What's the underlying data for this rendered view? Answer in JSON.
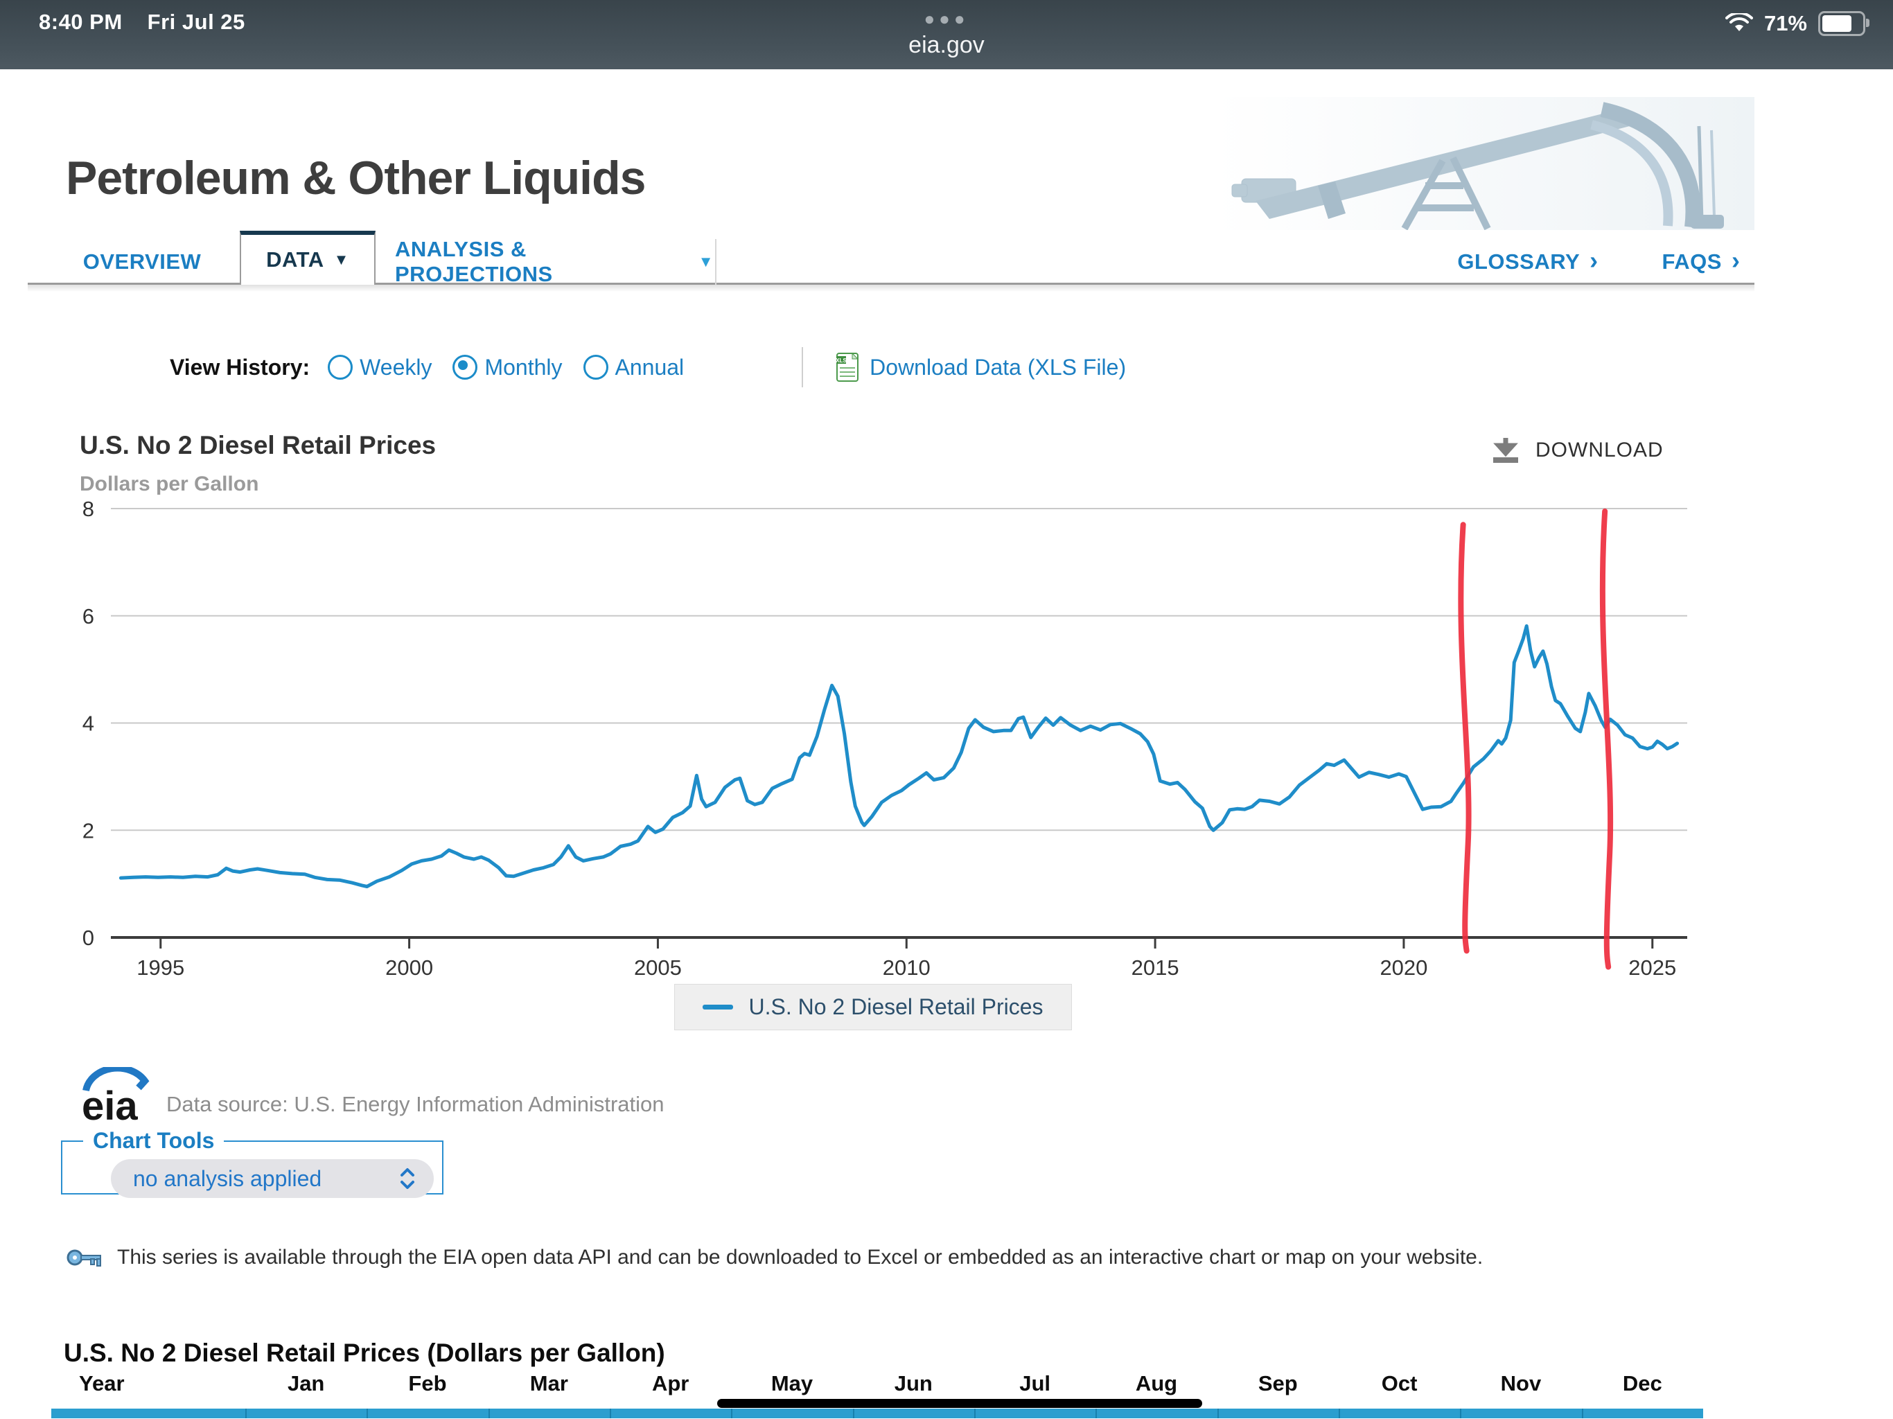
{
  "status_bar": {
    "time": "8:40 PM",
    "date": "Fri Jul 25",
    "url": "eia.gov",
    "battery_percent": "71%"
  },
  "masthead": {
    "title": "Petroleum & Other Liquids"
  },
  "tabs": {
    "overview": "OVERVIEW",
    "data": "DATA",
    "analysis": "ANALYSIS & PROJECTIONS",
    "glossary": "GLOSSARY",
    "faqs": "FAQS"
  },
  "view_history": {
    "label": "View History:",
    "options": [
      {
        "label": "Weekly",
        "selected": false
      },
      {
        "label": "Monthly",
        "selected": true
      },
      {
        "label": "Annual",
        "selected": false
      }
    ],
    "download_link": "Download Data (XLS File)"
  },
  "chart_header": {
    "title": "U.S. No 2 Diesel Retail Prices",
    "subtitle": "Dollars per Gallon",
    "download_label": "DOWNLOAD"
  },
  "chart_data": {
    "type": "line",
    "title": "U.S. No 2 Diesel Retail Prices",
    "ylabel": "Dollars per Gallon",
    "xlim": [
      1994.0,
      2025.7
    ],
    "ylim": [
      0,
      8
    ],
    "yticks": [
      0,
      2,
      4,
      6,
      8
    ],
    "xticks": [
      1995,
      2000,
      2005,
      2010,
      2015,
      2020,
      2025
    ],
    "grid": "horizontal",
    "legend_position": "bottom",
    "line_color": "#1f8dc9",
    "series": [
      {
        "name": "U.S. No 2 Diesel Retail Prices",
        "points": [
          [
            1994.2,
            1.11
          ],
          [
            1994.45,
            1.12
          ],
          [
            1994.7,
            1.13
          ],
          [
            1994.95,
            1.12
          ],
          [
            1995.2,
            1.13
          ],
          [
            1995.45,
            1.12
          ],
          [
            1995.7,
            1.14
          ],
          [
            1995.95,
            1.13
          ],
          [
            1996.15,
            1.17
          ],
          [
            1996.32,
            1.29
          ],
          [
            1996.45,
            1.24
          ],
          [
            1996.6,
            1.22
          ],
          [
            1996.8,
            1.26
          ],
          [
            1996.95,
            1.28
          ],
          [
            1997.15,
            1.25
          ],
          [
            1997.4,
            1.21
          ],
          [
            1997.65,
            1.19
          ],
          [
            1997.9,
            1.18
          ],
          [
            1998.1,
            1.12
          ],
          [
            1998.35,
            1.08
          ],
          [
            1998.6,
            1.07
          ],
          [
            1998.85,
            1.02
          ],
          [
            1999.05,
            0.97
          ],
          [
            1999.15,
            0.95
          ],
          [
            1999.35,
            1.05
          ],
          [
            1999.6,
            1.13
          ],
          [
            1999.85,
            1.25
          ],
          [
            2000.05,
            1.37
          ],
          [
            2000.25,
            1.43
          ],
          [
            2000.45,
            1.46
          ],
          [
            2000.65,
            1.52
          ],
          [
            2000.8,
            1.63
          ],
          [
            2000.95,
            1.57
          ],
          [
            2001.1,
            1.5
          ],
          [
            2001.3,
            1.46
          ],
          [
            2001.45,
            1.5
          ],
          [
            2001.6,
            1.44
          ],
          [
            2001.8,
            1.3
          ],
          [
            2001.95,
            1.15
          ],
          [
            2002.1,
            1.14
          ],
          [
            2002.3,
            1.2
          ],
          [
            2002.5,
            1.26
          ],
          [
            2002.7,
            1.3
          ],
          [
            2002.9,
            1.36
          ],
          [
            2003.05,
            1.5
          ],
          [
            2003.2,
            1.71
          ],
          [
            2003.35,
            1.5
          ],
          [
            2003.5,
            1.43
          ],
          [
            2003.7,
            1.47
          ],
          [
            2003.9,
            1.5
          ],
          [
            2004.05,
            1.56
          ],
          [
            2004.25,
            1.7
          ],
          [
            2004.45,
            1.74
          ],
          [
            2004.6,
            1.8
          ],
          [
            2004.8,
            2.07
          ],
          [
            2004.95,
            1.96
          ],
          [
            2005.1,
            2.02
          ],
          [
            2005.3,
            2.24
          ],
          [
            2005.5,
            2.33
          ],
          [
            2005.65,
            2.45
          ],
          [
            2005.78,
            3.02
          ],
          [
            2005.88,
            2.58
          ],
          [
            2005.97,
            2.44
          ],
          [
            2006.15,
            2.52
          ],
          [
            2006.35,
            2.8
          ],
          [
            2006.55,
            2.94
          ],
          [
            2006.65,
            2.97
          ],
          [
            2006.8,
            2.55
          ],
          [
            2006.95,
            2.48
          ],
          [
            2007.1,
            2.52
          ],
          [
            2007.3,
            2.78
          ],
          [
            2007.5,
            2.87
          ],
          [
            2007.7,
            2.95
          ],
          [
            2007.85,
            3.35
          ],
          [
            2007.95,
            3.43
          ],
          [
            2008.05,
            3.4
          ],
          [
            2008.2,
            3.75
          ],
          [
            2008.35,
            4.25
          ],
          [
            2008.5,
            4.7
          ],
          [
            2008.62,
            4.5
          ],
          [
            2008.75,
            3.8
          ],
          [
            2008.88,
            2.9
          ],
          [
            2008.97,
            2.45
          ],
          [
            2009.1,
            2.15
          ],
          [
            2009.15,
            2.09
          ],
          [
            2009.3,
            2.25
          ],
          [
            2009.5,
            2.52
          ],
          [
            2009.7,
            2.65
          ],
          [
            2009.9,
            2.74
          ],
          [
            2010.05,
            2.85
          ],
          [
            2010.25,
            2.97
          ],
          [
            2010.4,
            3.07
          ],
          [
            2010.55,
            2.94
          ],
          [
            2010.75,
            2.98
          ],
          [
            2010.95,
            3.16
          ],
          [
            2011.1,
            3.45
          ],
          [
            2011.25,
            3.9
          ],
          [
            2011.38,
            4.06
          ],
          [
            2011.55,
            3.92
          ],
          [
            2011.75,
            3.84
          ],
          [
            2011.95,
            3.86
          ],
          [
            2012.1,
            3.86
          ],
          [
            2012.25,
            4.08
          ],
          [
            2012.35,
            4.11
          ],
          [
            2012.5,
            3.73
          ],
          [
            2012.65,
            3.92
          ],
          [
            2012.8,
            4.09
          ],
          [
            2012.95,
            3.96
          ],
          [
            2013.1,
            4.1
          ],
          [
            2013.3,
            3.96
          ],
          [
            2013.5,
            3.86
          ],
          [
            2013.7,
            3.94
          ],
          [
            2013.9,
            3.87
          ],
          [
            2014.1,
            3.97
          ],
          [
            2014.3,
            3.99
          ],
          [
            2014.5,
            3.9
          ],
          [
            2014.7,
            3.8
          ],
          [
            2014.85,
            3.65
          ],
          [
            2014.97,
            3.42
          ],
          [
            2015.1,
            2.92
          ],
          [
            2015.3,
            2.86
          ],
          [
            2015.45,
            2.89
          ],
          [
            2015.6,
            2.76
          ],
          [
            2015.8,
            2.53
          ],
          [
            2015.95,
            2.41
          ],
          [
            2016.1,
            2.07
          ],
          [
            2016.17,
            2.0
          ],
          [
            2016.35,
            2.14
          ],
          [
            2016.5,
            2.38
          ],
          [
            2016.65,
            2.4
          ],
          [
            2016.8,
            2.39
          ],
          [
            2016.95,
            2.44
          ],
          [
            2017.1,
            2.56
          ],
          [
            2017.3,
            2.54
          ],
          [
            2017.5,
            2.49
          ],
          [
            2017.7,
            2.62
          ],
          [
            2017.9,
            2.84
          ],
          [
            2018.1,
            2.98
          ],
          [
            2018.3,
            3.12
          ],
          [
            2018.45,
            3.24
          ],
          [
            2018.6,
            3.21
          ],
          [
            2018.8,
            3.31
          ],
          [
            2018.95,
            3.15
          ],
          [
            2019.1,
            2.99
          ],
          [
            2019.3,
            3.08
          ],
          [
            2019.5,
            3.04
          ],
          [
            2019.7,
            2.99
          ],
          [
            2019.9,
            3.05
          ],
          [
            2020.05,
            3.0
          ],
          [
            2020.2,
            2.72
          ],
          [
            2020.38,
            2.39
          ],
          [
            2020.55,
            2.43
          ],
          [
            2020.75,
            2.44
          ],
          [
            2020.95,
            2.54
          ],
          [
            2021.05,
            2.68
          ],
          [
            2021.2,
            2.88
          ],
          [
            2021.4,
            3.18
          ],
          [
            2021.6,
            3.33
          ],
          [
            2021.75,
            3.48
          ],
          [
            2021.9,
            3.67
          ],
          [
            2021.97,
            3.61
          ],
          [
            2022.05,
            3.72
          ],
          [
            2022.15,
            4.05
          ],
          [
            2022.22,
            5.13
          ],
          [
            2022.3,
            5.32
          ],
          [
            2022.4,
            5.57
          ],
          [
            2022.47,
            5.81
          ],
          [
            2022.55,
            5.35
          ],
          [
            2022.63,
            5.05
          ],
          [
            2022.72,
            5.22
          ],
          [
            2022.8,
            5.34
          ],
          [
            2022.88,
            5.1
          ],
          [
            2022.97,
            4.68
          ],
          [
            2023.05,
            4.42
          ],
          [
            2023.15,
            4.36
          ],
          [
            2023.3,
            4.12
          ],
          [
            2023.45,
            3.9
          ],
          [
            2023.55,
            3.84
          ],
          [
            2023.65,
            4.2
          ],
          [
            2023.72,
            4.55
          ],
          [
            2023.85,
            4.32
          ],
          [
            2023.97,
            4.05
          ],
          [
            2024.05,
            3.92
          ],
          [
            2024.15,
            4.07
          ],
          [
            2024.3,
            3.96
          ],
          [
            2024.45,
            3.78
          ],
          [
            2024.6,
            3.72
          ],
          [
            2024.75,
            3.56
          ],
          [
            2024.9,
            3.52
          ],
          [
            2025.0,
            3.55
          ],
          [
            2025.1,
            3.66
          ],
          [
            2025.2,
            3.6
          ],
          [
            2025.3,
            3.52
          ],
          [
            2025.4,
            3.56
          ],
          [
            2025.5,
            3.62
          ]
        ]
      }
    ],
    "annotations": [
      {
        "type": "hand-drawn-red-vertical-line",
        "color": "#ee2e3e",
        "x_year": 2021.25,
        "y_from": -0.25,
        "y_to": 7.7
      },
      {
        "type": "hand-drawn-red-vertical-line",
        "color": "#ee2e3e",
        "x_year": 2024.1,
        "y_from": -0.55,
        "y_to": 7.95
      }
    ]
  },
  "legend": {
    "label": "U.S. No 2 Diesel Retail Prices"
  },
  "source": {
    "logo_text": "eia",
    "text": "Data source: U.S. Energy Information Administration"
  },
  "chart_tools": {
    "legend": "Chart Tools",
    "selected_option": "no analysis applied"
  },
  "api_note": "This series is available through the EIA open data API and can be downloaded to Excel or embedded as an interactive chart or map on your website.",
  "table": {
    "title": "U.S. No 2 Diesel Retail Prices (Dollars per Gallon)",
    "columns": [
      "Year",
      "Jan",
      "Feb",
      "Mar",
      "Apr",
      "May",
      "Jun",
      "Jul",
      "Aug",
      "Sep",
      "Oct",
      "Nov",
      "Dec"
    ]
  }
}
